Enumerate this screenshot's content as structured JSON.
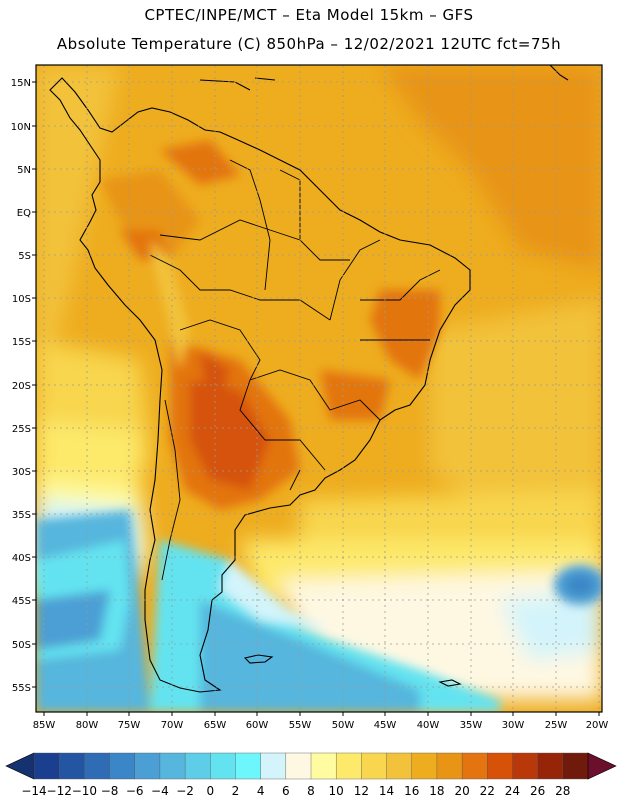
{
  "header": {
    "line1": "CPTEC/INPE/MCT –  Eta Model 15km – GFS",
    "line2": "Absolute Temperature (C) 850hPa – 12/02/2021 12UTC fct=75h"
  },
  "map": {
    "lat_labels": [
      "15N",
      "10N",
      "5N",
      "EQ",
      "5S",
      "10S",
      "15S",
      "20S",
      "25S",
      "30S",
      "35S",
      "40S",
      "45S",
      "50S",
      "55S"
    ],
    "lon_labels": [
      "85W",
      "80W",
      "75W",
      "70W",
      "65W",
      "60W",
      "55W",
      "50W",
      "45W",
      "40W",
      "35W",
      "30W",
      "25W",
      "20W"
    ]
  },
  "colorbar": {
    "labels": [
      "-14",
      "-12",
      "-10",
      "-8",
      "-6",
      "-4",
      "-2",
      "0",
      "2",
      "4",
      "6",
      "8",
      "10",
      "12",
      "14",
      "16",
      "18",
      "20",
      "22",
      "24",
      "26",
      "28"
    ],
    "colors": [
      "#1a3f8f",
      "#2455a3",
      "#2f6cb5",
      "#3b86c6",
      "#4b9fd4",
      "#57b6dd",
      "#5ecde7",
      "#63e3f0",
      "#6df6fb",
      "#d3f4fb",
      "#fef8e2",
      "#fefba0",
      "#fde96a",
      "#f8d64e",
      "#f2c23a",
      "#eeac1f",
      "#e89415",
      "#e3740f",
      "#d55208",
      "#b9380a",
      "#962408",
      "#701a0c"
    ],
    "end_left_color": "#15316f",
    "end_right_color": "#6b0f2c"
  },
  "colors": {
    "land_outline": "#000000",
    "grid": "#9a9a9a"
  }
}
